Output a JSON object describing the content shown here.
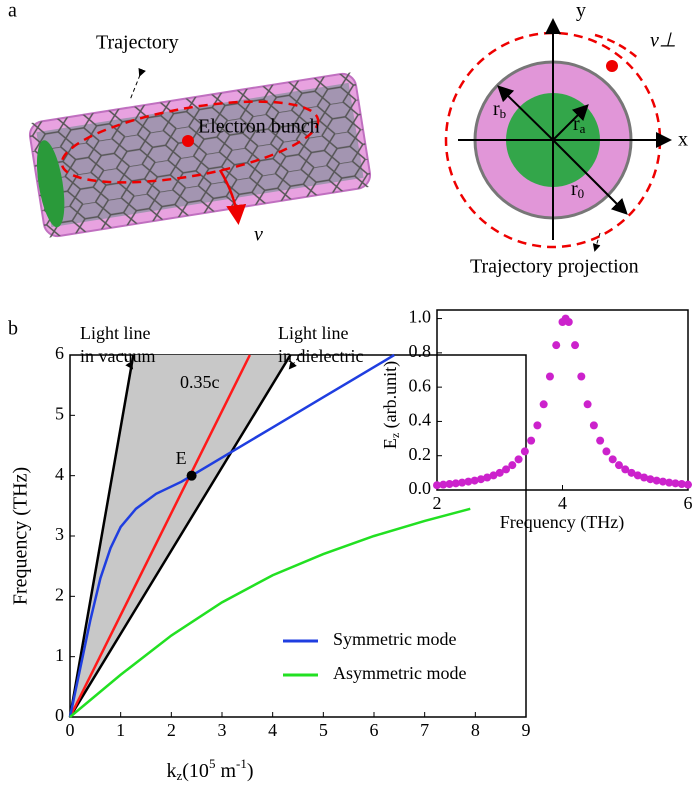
{
  "panel_a": {
    "label": "a",
    "trajectory": "Trajectory",
    "electron_bunch": "Electron bunch",
    "v": "v",
    "y_axis": "y",
    "x_axis": "x",
    "v_perp": "v⊥",
    "r_b": {
      "main": "r",
      "sub": "b"
    },
    "r_a": {
      "main": "r",
      "sub": "a"
    },
    "r_0": {
      "main": "r",
      "sub": "0"
    },
    "projection": "Trajectory projection"
  },
  "panel_b": {
    "label": "b"
  },
  "chart_data": [
    {
      "type": "line",
      "xlabel": {
        "main": "k",
        "sub": "z",
        "rest": "(10",
        "sup": "5",
        "rest2": " m",
        "sup2": "-1",
        "end": ")"
      },
      "ylabel": "Frequency (THz)",
      "xlim": [
        0,
        9
      ],
      "ylim": [
        0,
        6
      ],
      "xticks": [
        0,
        1,
        2,
        3,
        4,
        5,
        6,
        7,
        8,
        9
      ],
      "yticks": [
        0,
        1,
        2,
        3,
        4,
        5,
        6
      ],
      "series": [
        {
          "name": "Symmetric mode",
          "color": "#1f3ee0",
          "x": [
            0,
            0.2,
            0.4,
            0.6,
            0.8,
            1.0,
            1.3,
            1.7,
            2.2,
            2.4,
            3,
            4,
            5,
            6,
            6.4
          ],
          "values": [
            0,
            0.8,
            1.6,
            2.3,
            2.8,
            3.15,
            3.45,
            3.7,
            3.9,
            4.0,
            4.3,
            4.8,
            5.3,
            5.8,
            6.0
          ]
        },
        {
          "name": "Asymmetric mode",
          "color": "#22e022",
          "x": [
            0,
            1,
            2,
            3,
            4,
            5,
            6,
            7,
            7.9
          ],
          "values": [
            0,
            0.7,
            1.35,
            1.9,
            2.35,
            2.7,
            3.0,
            3.25,
            3.45
          ]
        }
      ],
      "reference_lines": [
        {
          "label": [
            "Light line",
            "in vacuum"
          ],
          "color": "#000000",
          "x": [
            0,
            1.25
          ],
          "values": [
            0,
            6
          ]
        },
        {
          "label": [
            "Light line",
            "in dielectric"
          ],
          "color": "#000000",
          "x": [
            0,
            4.35
          ],
          "values": [
            0,
            6
          ]
        },
        {
          "label": [
            "0.35c"
          ],
          "color": "#ff1a1a",
          "x": [
            0,
            3.55
          ],
          "values": [
            0,
            6
          ]
        }
      ],
      "point": {
        "label": "E",
        "x": 2.4,
        "y": 4.0
      }
    },
    {
      "type": "scatter",
      "xlabel": "Frequency (THz)",
      "ylabel": {
        "main": "E",
        "sub": "z",
        "rest": " (arb.unit)"
      },
      "xlim": [
        2,
        6
      ],
      "ylim": [
        0,
        1.05
      ],
      "xticks": [
        2,
        4,
        6
      ],
      "yticks": [
        {
          "value": 0,
          "label": "0.0"
        },
        0.2,
        0.4,
        0.6,
        0.8,
        {
          "value": 1,
          "label": "1.0"
        }
      ],
      "series": [
        {
          "color": "#cc22cc",
          "x": [
            2.0,
            2.1,
            2.2,
            2.3,
            2.4,
            2.5,
            2.6,
            2.7,
            2.8,
            2.9,
            3.0,
            3.1,
            3.2,
            3.3,
            3.4,
            3.5,
            3.6,
            3.7,
            3.8,
            3.9,
            4.0,
            4.05,
            4.1,
            4.2,
            4.3,
            4.4,
            4.5,
            4.6,
            4.7,
            4.8,
            4.9,
            5.0,
            5.1,
            5.2,
            5.3,
            5.4,
            5.5,
            5.6,
            5.7,
            5.8,
            5.9,
            6.0
          ],
          "values": [
            0.028,
            0.031,
            0.035,
            0.039,
            0.043,
            0.049,
            0.055,
            0.063,
            0.073,
            0.085,
            0.1,
            0.12,
            0.145,
            0.179,
            0.225,
            0.288,
            0.377,
            0.5,
            0.662,
            0.845,
            0.98,
            1,
            0.98,
            0.845,
            0.662,
            0.5,
            0.377,
            0.288,
            0.225,
            0.179,
            0.145,
            0.12,
            0.1,
            0.085,
            0.073,
            0.063,
            0.055,
            0.049,
            0.043,
            0.039,
            0.035,
            0.031
          ]
        }
      ]
    }
  ]
}
